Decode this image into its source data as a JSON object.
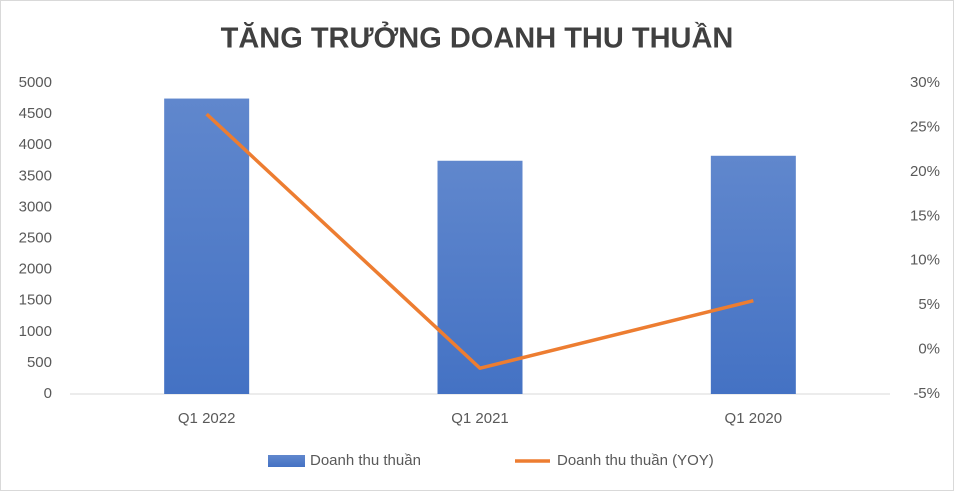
{
  "chart_data": {
    "type": "bar",
    "title": "TĂNG TRƯỞNG DOANH THU THUẦN",
    "categories": [
      "Q1 2022",
      "Q1 2021",
      "Q1 2020"
    ],
    "series": [
      {
        "name": "Doanh thu thuần",
        "type": "bar",
        "color": "#4472c4",
        "values": [
          4750,
          3750,
          3830
        ]
      },
      {
        "name": "Doanh thu thuần (YOY)",
        "type": "line",
        "axis": "y2",
        "color": "#ed7d31",
        "values": [
          26.5,
          -2.1,
          5.5
        ]
      }
    ],
    "ylim": [
      0,
      5000
    ],
    "yticks": [
      0,
      500,
      1000,
      1500,
      2000,
      2500,
      3000,
      3500,
      4000,
      4500,
      5000
    ],
    "y2lim": [
      -5,
      30
    ],
    "y2ticks": [
      {
        "value": -5,
        "label": "-5%"
      },
      {
        "value": 0,
        "label": "0%"
      },
      {
        "value": 5,
        "label": "5%"
      },
      {
        "value": 10,
        "label": "10%"
      },
      {
        "value": 15,
        "label": "15%"
      },
      {
        "value": 20,
        "label": "20%"
      },
      {
        "value": 25,
        "label": "25%"
      },
      {
        "value": 30,
        "label": "30%"
      }
    ],
    "grid": false,
    "legend": "bottom"
  }
}
